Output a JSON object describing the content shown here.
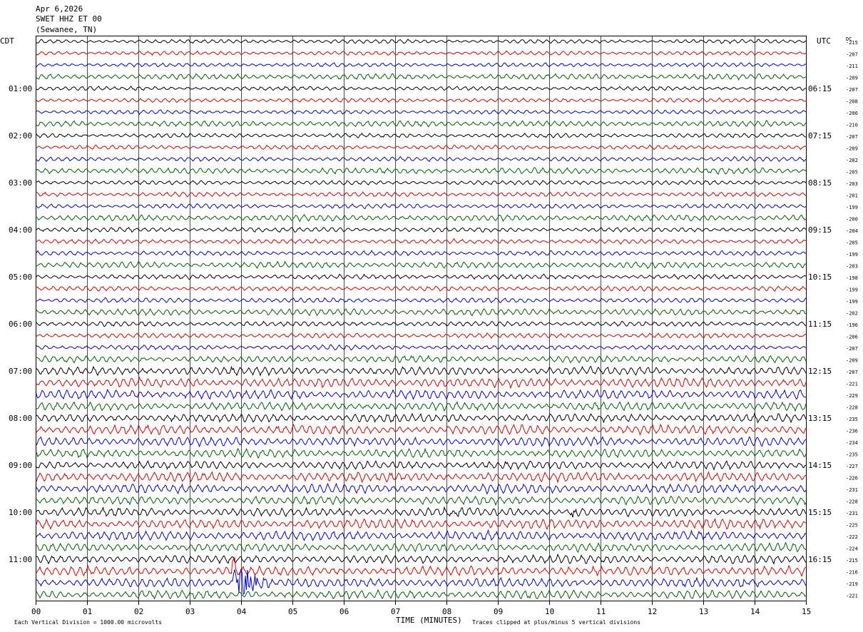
{
  "header": {
    "date": "Apr 6,2026",
    "station": "SWET HHZ ET 00",
    "location": "(Sewanee, TN)"
  },
  "left_zone": "CDT",
  "right_zone": "UTC",
  "dc_label": "DC",
  "footer": {
    "scale_note": "Each Vertical Division = 1000.00 microvolts",
    "clip_note": "Traces clipped at plus/minus 5 vertical divisions"
  },
  "colors": {
    "cycle": [
      "#000000",
      "#dd0000",
      "#0000dd",
      "#006000"
    ],
    "grid": "#000000"
  },
  "chart_data": {
    "type": "line",
    "subtype": "helicorder",
    "xlabel": "TIME (MINUTES)",
    "x_ticks": [
      "00",
      "01",
      "02",
      "03",
      "04",
      "05",
      "06",
      "07",
      "08",
      "09",
      "10",
      "11",
      "12",
      "13",
      "14",
      "15"
    ],
    "xlim": [
      0,
      15
    ],
    "left_hour_labels": [
      "01:00",
      "02:00",
      "03:00",
      "04:00",
      "05:00",
      "06:00",
      "07:00",
      "08:00",
      "09:00",
      "10:00",
      "11:00"
    ],
    "right_hour_labels": [
      "06:15",
      "07:15",
      "08:15",
      "09:15",
      "10:15",
      "11:15",
      "12:15",
      "13:15",
      "14:15",
      "15:15",
      "16:15"
    ],
    "rows": 48,
    "dc_offsets": [
      -215,
      -207,
      -211,
      -209,
      -207,
      -208,
      -206,
      -210,
      -207,
      -209,
      -202,
      -205,
      -203,
      -201,
      -199,
      -200,
      -204,
      -205,
      -199,
      -203,
      -198,
      -199,
      -199,
      -202,
      -196,
      -206,
      -207,
      -209,
      -207,
      -221,
      -229,
      -228,
      -235,
      -236,
      -234,
      -235,
      -227,
      -226,
      -231,
      -228,
      -231,
      -225,
      -222,
      -224,
      -215,
      -216,
      -219,
      -221
    ],
    "events": [
      {
        "row": 46,
        "minute": 3.85,
        "note": "large transient on blue trace"
      },
      {
        "row": 45,
        "minute": 3.85,
        "note": "spike from above row"
      },
      {
        "row": 40,
        "minute": 10.5,
        "note": "burst on black trace"
      },
      {
        "row": 40,
        "minute": 8.1,
        "note": "burst on black trace"
      },
      {
        "row": 46,
        "minute": 13.9,
        "note": "burst on blue trace"
      }
    ]
  }
}
